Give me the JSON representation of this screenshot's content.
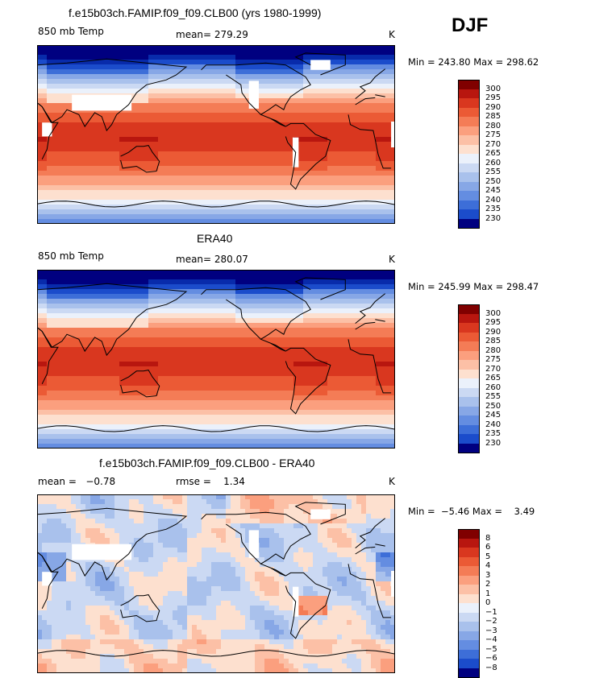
{
  "season": "DJF",
  "units": "K",
  "colors": {
    "warm": [
      "#fde0cf",
      "#fcc0a6",
      "#fb9f7e",
      "#f47c56",
      "#eb5a35",
      "#d9371f",
      "#b8160f",
      "#800000"
    ],
    "cool": [
      "#ebf1fb",
      "#cbd9f3",
      "#a9c1ec",
      "#87a7e6",
      "#648de1",
      "#3d6ed8",
      "#1b4ccb",
      "#082bab",
      "#000080"
    ],
    "white": "#ffffff",
    "coast": "#000000"
  },
  "panels": [
    {
      "title": "f.e15b03ch.FAMIP.f09_f09.CLB00 (yrs 1980-1999)",
      "left_label": "850 mb Temp",
      "center_label": "mean= 279.29",
      "right_label": "K",
      "stats": "Min = 243.80 Max = 298.62",
      "kind": "model"
    },
    {
      "title": "ERA40",
      "left_label": "850 mb Temp",
      "center_label": "mean= 280.07",
      "right_label": "K",
      "stats": "Min = 245.99 Max = 298.47",
      "kind": "obs"
    },
    {
      "title": "f.e15b03ch.FAMIP.f09_f09.CLB00 - ERA40",
      "left_label": "mean =   −0.78",
      "center_label": "rmse =    1.34",
      "right_label": "K",
      "stats": "Min =  −5.46 Max =    3.49",
      "kind": "diff"
    }
  ],
  "colorbars": [
    {
      "labels": [
        "300",
        "295",
        "290",
        "285",
        "280",
        "275",
        "270",
        "265",
        "260",
        "255",
        "250",
        "245",
        "240",
        "235",
        "230"
      ],
      "fills": [
        "#800000",
        "#b8160f",
        "#d9371f",
        "#eb5a35",
        "#f47c56",
        "#fb9f7e",
        "#fcc0a6",
        "#fde0cf",
        "#ebf1fb",
        "#cbd9f3",
        "#a9c1ec",
        "#87a7e6",
        "#648de1",
        "#3d6ed8",
        "#1b4ccb",
        "#000080"
      ]
    },
    {
      "labels": [
        "300",
        "295",
        "290",
        "285",
        "280",
        "275",
        "270",
        "265",
        "260",
        "255",
        "250",
        "245",
        "240",
        "235",
        "230"
      ],
      "fills": [
        "#800000",
        "#b8160f",
        "#d9371f",
        "#eb5a35",
        "#f47c56",
        "#fb9f7e",
        "#fcc0a6",
        "#fde0cf",
        "#ebf1fb",
        "#cbd9f3",
        "#a9c1ec",
        "#87a7e6",
        "#648de1",
        "#3d6ed8",
        "#1b4ccb",
        "#000080"
      ]
    },
    {
      "labels": [
        "8",
        "6",
        "5",
        "4",
        "3",
        "2",
        "1",
        "0",
        "−1",
        "−2",
        "−3",
        "−4",
        "−5",
        "−6",
        "−8"
      ],
      "fills": [
        "#800000",
        "#b8160f",
        "#d9371f",
        "#eb5a35",
        "#f47c56",
        "#fb9f7e",
        "#fcc0a6",
        "#fde0cf",
        "#ebf1fb",
        "#cbd9f3",
        "#a9c1ec",
        "#87a7e6",
        "#648de1",
        "#3d6ed8",
        "#1b4ccb",
        "#000080"
      ]
    }
  ]
}
